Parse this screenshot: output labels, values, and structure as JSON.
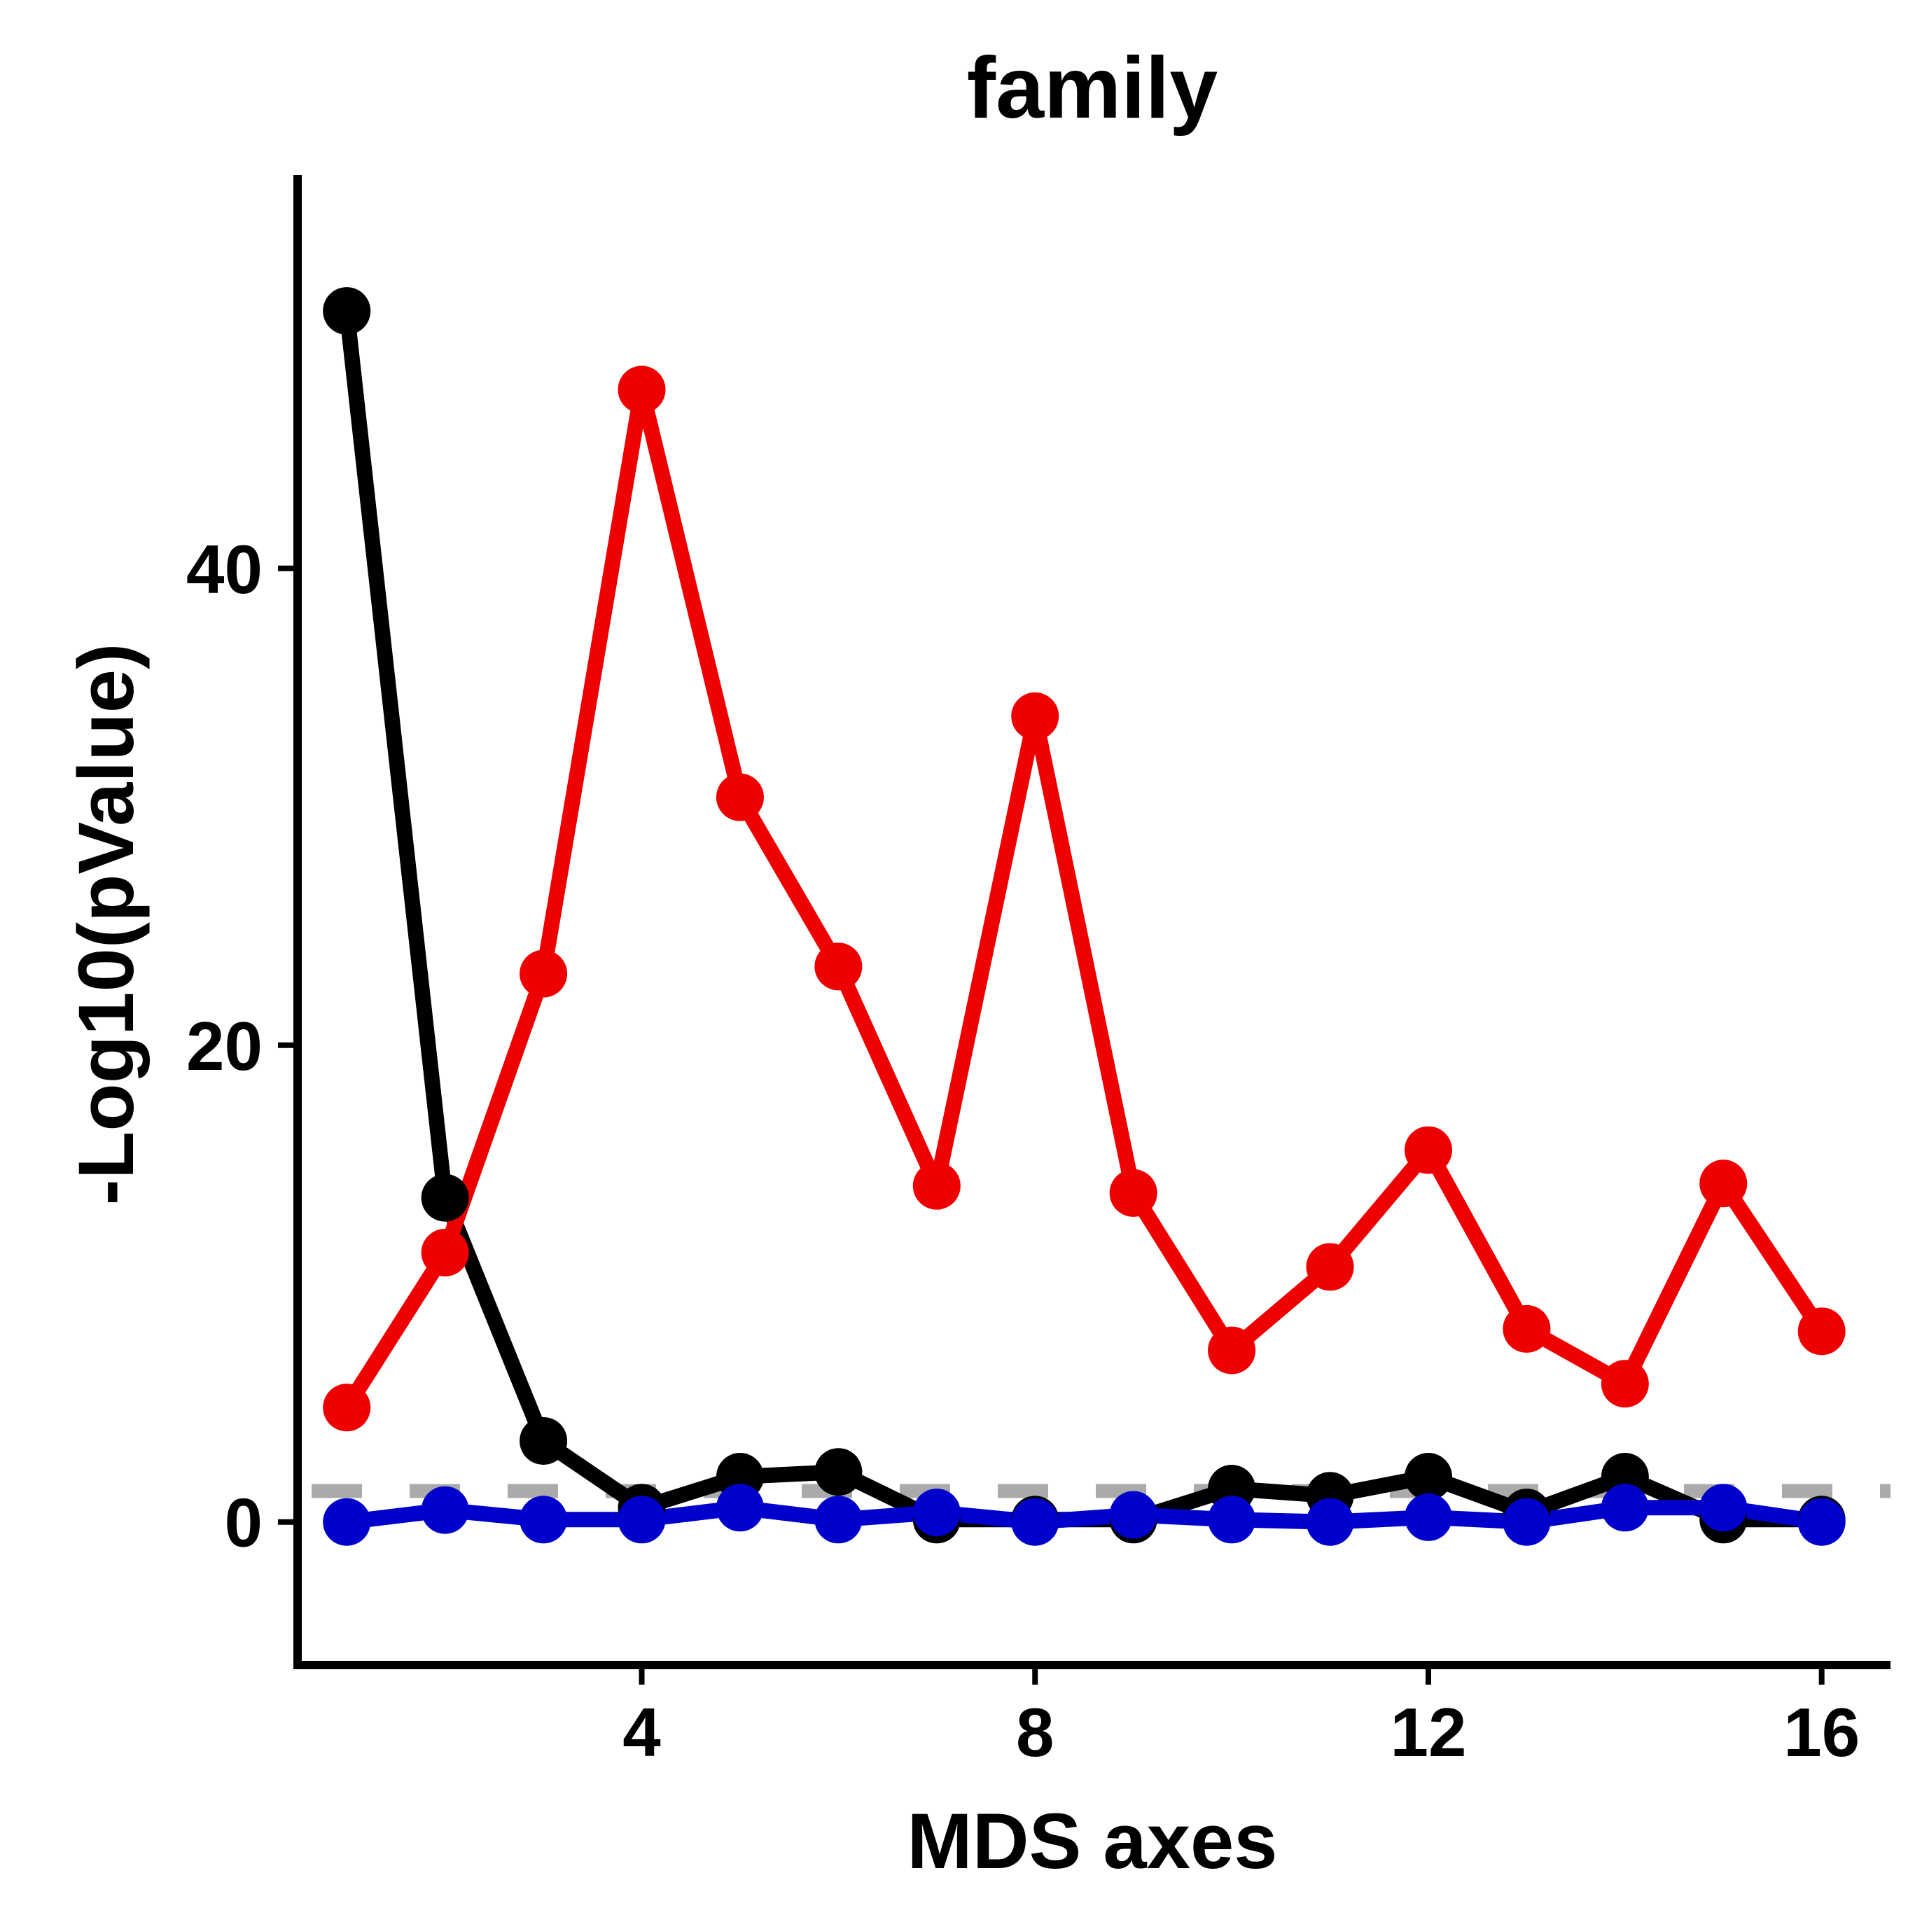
{
  "chart_data": {
    "type": "line",
    "title": "family",
    "xlabel": "MDS axes",
    "ylabel": "-Log10(pValue)",
    "xlim": [
      0.5,
      16.7
    ],
    "ylim": [
      -6,
      56.5
    ],
    "xticks": [
      4,
      8,
      12,
      16
    ],
    "yticks": [
      0,
      20,
      40
    ],
    "grid": false,
    "legend": "none",
    "threshold": {
      "y": 1.3,
      "color": "#aaaaaa",
      "style": "dashed"
    },
    "x": [
      1,
      2,
      3,
      4,
      5,
      6,
      7,
      8,
      9,
      10,
      11,
      12,
      13,
      14,
      15,
      16
    ],
    "series": [
      {
        "color": "#000000",
        "values": [
          50.8,
          13.6,
          3.4,
          0.6,
          1.9,
          2.1,
          0.1,
          0.1,
          0.1,
          1.4,
          1.1,
          1.9,
          0.4,
          1.9,
          0.1,
          0.1
        ]
      },
      {
        "color": "#ee0000",
        "values": [
          4.8,
          11.3,
          23.0,
          47.5,
          30.4,
          23.3,
          14.1,
          33.8,
          13.8,
          7.2,
          10.7,
          15.6,
          8.1,
          5.8,
          14.2,
          8.0
        ]
      },
      {
        "color": "#0000cc",
        "values": [
          0.0,
          0.5,
          0.1,
          0.1,
          0.6,
          0.1,
          0.4,
          0.0,
          0.3,
          0.1,
          0.0,
          0.2,
          0.0,
          0.6,
          0.6,
          0.0
        ]
      }
    ]
  }
}
